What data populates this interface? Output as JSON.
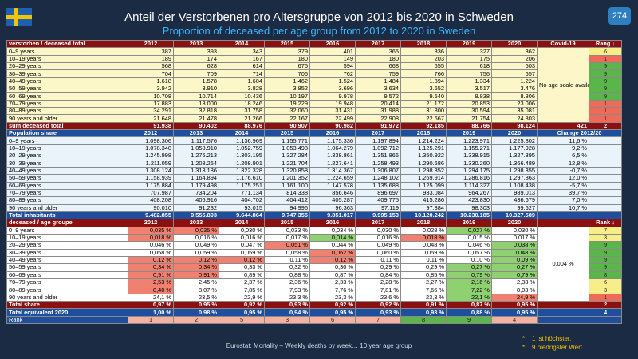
{
  "title_de": "Anteil der Verstorbenen pro Altersgruppe von 2012 bis 2020 in Schweden",
  "title_en": "Proportion of deceased per age group from 2012 to 2020 in Sweden",
  "page_number": "274",
  "colors": {
    "flag_blue": "#1f5fb0",
    "flag_yellow": "#f2c500",
    "header_red": "#8b1010",
    "header_blue": "#1f4f9c",
    "rank_red": "#f06a5a",
    "rank_green": "#5ab54a"
  },
  "years": [
    "2012",
    "2013",
    "2014",
    "2015",
    "2016",
    "2017",
    "2018",
    "2019",
    "2020"
  ],
  "deceased": {
    "header_label": "verstorben / deceased total",
    "covid_label": "Covid-19",
    "rank_label": "Rang ↓",
    "no_scale_note": "No age scale available",
    "rows": [
      {
        "label": "0–9 years",
        "values": [
          "387",
          "393",
          "343",
          "379",
          "401",
          "365",
          "336",
          "327",
          "362"
        ],
        "rank": "6"
      },
      {
        "label": "10–19 years",
        "values": [
          "189",
          "174",
          "167",
          "180",
          "149",
          "180",
          "203",
          "175",
          "206"
        ],
        "rank": "1"
      },
      {
        "label": "20–29 years",
        "values": [
          "568",
          "628",
          "614",
          "675",
          "594",
          "668",
          "655",
          "618",
          "503"
        ],
        "rank": "9"
      },
      {
        "label": "30–39 years",
        "values": [
          "704",
          "709",
          "714",
          "706",
          "762",
          "759",
          "766",
          "756",
          "657"
        ],
        "rank": "9"
      },
      {
        "label": "40–49 years",
        "values": [
          "1.618",
          "1.578",
          "1.604",
          "1.462",
          "1.524",
          "1.484",
          "1.394",
          "1.334",
          "1.224"
        ],
        "rank": "9"
      },
      {
        "label": "50–59 years",
        "values": [
          "3.942",
          "3.910",
          "3.828",
          "3.852",
          "3.696",
          "3.634",
          "3.652",
          "3.517",
          "3.476"
        ],
        "rank": "9"
      },
      {
        "label": "60–69 years",
        "values": [
          "10.708",
          "10.714",
          "10.436",
          "10.197",
          "9.978",
          "9.572",
          "9.540",
          "8.838",
          "8.806"
        ],
        "rank": "9"
      },
      {
        "label": "70–79 years",
        "values": [
          "17.883",
          "18.000",
          "18.246",
          "19.229",
          "19.948",
          "20.414",
          "21.172",
          "20.853",
          "23.006"
        ],
        "rank": "1"
      },
      {
        "label": "80–89 years",
        "values": [
          "34.291",
          "32.818",
          "31.758",
          "32.060",
          "31.431",
          "31.988",
          "31.800",
          "30.594",
          "35.081"
        ],
        "rank": "1"
      },
      {
        "label": "90 years and older",
        "values": [
          "21.648",
          "21.478",
          "21.266",
          "22.167",
          "22.499",
          "22.908",
          "22.667",
          "21.754",
          "24.803"
        ],
        "rank": "1"
      }
    ],
    "total": {
      "label": "sum deceased total",
      "values": [
        "91.938",
        "90.402",
        "88.976",
        "90.907",
        "90.982",
        "91.972",
        "92.185",
        "88.766",
        "98.124"
      ],
      "covid": "421",
      "rank": "2"
    }
  },
  "population": {
    "header_label": "Population share",
    "change_label": "Change 2012/20",
    "rows": [
      {
        "label": "0–9 years",
        "values": [
          "1.098.306",
          "1.117.576",
          "1.136.969",
          "1.155.771",
          "1.175.336",
          "1.197.894",
          "1.214.224",
          "1.223.971",
          "1.225.802"
        ],
        "change": "11,6 %"
      },
      {
        "label": "10–19 years",
        "values": [
          "1.078.340",
          "1.058.910",
          "1.052.759",
          "1.053.498",
          "1.064.279",
          "1.092.712",
          "1.125.291",
          "1.155.271",
          "1.177.928"
        ],
        "change": "9,2 %"
      },
      {
        "label": "20–29 years",
        "values": [
          "1.245.998",
          "1.276.213",
          "1.303.195",
          "1.327.284",
          "1.338.861",
          "1.351.866",
          "1.350.922",
          "1.338.915",
          "1.327.395"
        ],
        "change": "6,5 %"
      },
      {
        "label": "30–39 years",
        "values": [
          "1.211.059",
          "1.208.264",
          "1.208.901",
          "1.221.704",
          "1.227.641",
          "1.258.493",
          "1.290.686",
          "1.330.260",
          "1.366.489"
        ],
        "change": "12,8 %"
      },
      {
        "label": "40–49 years",
        "values": [
          "1.308.124",
          "1.318.186",
          "1.322.328",
          "1.320.858",
          "1.314.367",
          "1.306.807",
          "1.298.352",
          "1.294.175",
          "1.298.355"
        ],
        "change": "-0,7 %"
      },
      {
        "label": "50–59 years",
        "values": [
          "1.158.939",
          "1.164.894",
          "1.176.610",
          "1.201.352",
          "1.224.659",
          "1.248.102",
          "1.269.914",
          "1.286.816",
          "1.297.863"
        ],
        "change": "12,0 %"
      },
      {
        "label": "60–69 years",
        "values": [
          "1.175.884",
          "1.179.498",
          "1.175.251",
          "1.161.100",
          "1.147.578",
          "1.135.688",
          "1.125.099",
          "1.114.327",
          "1.108.438"
        ],
        "change": "-5,7 %"
      },
      {
        "label": "70–79 years",
        "values": [
          "707.987",
          "734.204",
          "771.134",
          "814.338",
          "856.646",
          "896.697",
          "933.084",
          "964.267",
          "989.013"
        ],
        "change": "39,7 %"
      },
      {
        "label": "80–89 years",
        "values": [
          "408.208",
          "406.916",
          "404.702",
          "404.412",
          "405.287",
          "409.775",
          "415.286",
          "423.830",
          "436.679"
        ],
        "change": "7,0 %"
      },
      {
        "label": "90 years and older",
        "values": [
          "90.010",
          "91.232",
          "93.015",
          "94.996",
          "96.363",
          "97.119",
          "97.384",
          "98.303",
          "99.627"
        ],
        "change": "10,7 %"
      }
    ],
    "total": {
      "label": "Total inhabitants",
      "values": [
        "9.482.855",
        "9.555.893",
        "9.644.864",
        "9.747.355",
        "9.851.017",
        "9.995.153",
        "10.120.242",
        "10.230.185",
        "10.327.589"
      ]
    }
  },
  "share": {
    "header_label": "deceased / age groupe",
    "rank_label": "Rank ↓",
    "covid_share": "0,004 %",
    "rows": [
      {
        "label": "0–9 years",
        "values": [
          "0,035 %",
          "0,035 %",
          "0,030 %",
          "0,033 %",
          "0,034 %",
          "0,030 %",
          "0,028 %",
          "0,027 %",
          "0,030 %"
        ],
        "rank": "7"
      },
      {
        "label": "10–19 years",
        "values": [
          "0,018 %",
          "0,016 %",
          "0,016 %",
          "0,017 %",
          "0,014 %",
          "0,016 %",
          "0,018 %",
          "0,015 %",
          "0,017 %"
        ],
        "rank": "3"
      },
      {
        "label": "20–29 years",
        "values": [
          "0,046 %",
          "0,049 %",
          "0,047 %",
          "0,051 %",
          "0,044 %",
          "0,049 %",
          "0,048 %",
          "0,046 %",
          "0,038 %"
        ],
        "rank": "9"
      },
      {
        "label": "30–39 years",
        "values": [
          "0,058 %",
          "0,059 %",
          "0,059 %",
          "0,058 %",
          "0,062 %",
          "0,060 %",
          "0,059 %",
          "0,057 %",
          "0,048 %"
        ],
        "rank": "9"
      },
      {
        "label": "40–49 years",
        "values": [
          "0,12 %",
          "0,12 %",
          "0,12 %",
          "0,11 %",
          "0,12 %",
          "0,11 %",
          "0,11 %",
          "0,10 %",
          "0,09 %"
        ],
        "rank": "9"
      },
      {
        "label": "50–59 years",
        "values": [
          "0,34 %",
          "0,34 %",
          "0,33 %",
          "0,32 %",
          "0,30 %",
          "0,29 %",
          "0,29 %",
          "0,27 %",
          "0,27 %"
        ],
        "rank": "9"
      },
      {
        "label": "60–69 years",
        "values": [
          "0,91 %",
          "0,91 %",
          "0,89 %",
          "0,88 %",
          "0,87 %",
          "0,84 %",
          "0,85 %",
          "0,79 %",
          "0,79 %"
        ],
        "rank": "8"
      },
      {
        "label": "70–79 years",
        "values": [
          "2,53 %",
          "2,45 %",
          "2,37 %",
          "2,36 %",
          "2,33 %",
          "2,28 %",
          "2,27 %",
          "2,16 %",
          "2,33 %"
        ],
        "rank": "6"
      },
      {
        "label": "80–89 years",
        "values": [
          "8,40 %",
          "8,07 %",
          "7,85 %",
          "7,93 %",
          "7,76 %",
          "7,81 %",
          "7,66 %",
          "7,22 %",
          "8,03 %"
        ],
        "rank": "3"
      },
      {
        "label": "90 years and older",
        "values": [
          "24,1 %",
          "23,5 %",
          "22,9 %",
          "23,3 %",
          "23,3 %",
          "23,6 %",
          "23,3 %",
          "22,1 %",
          "24,9 %"
        ],
        "rank": "1"
      }
    ],
    "total": {
      "label": "Total share",
      "values": [
        "0,97 %",
        "0,95 %",
        "0,92 %",
        "0,93 %",
        "0,92 %",
        "0,92 %",
        "0,91 %",
        "0,87 %",
        "0,95 %"
      ],
      "rank": "2"
    },
    "total_equiv": {
      "label": "Total equivalent 2020",
      "values": [
        "1,00 %",
        "0,98 %",
        "0,95 %",
        "0,94 %",
        "0,95 %",
        "0,93 %",
        "0,93 %",
        "0,88 %",
        "0,95 %"
      ],
      "rank": "4"
    },
    "rank_row": {
      "label": "Rank",
      "values": [
        "1",
        "2",
        "5",
        "3",
        "6",
        "7",
        "8",
        "9",
        "4"
      ]
    }
  },
  "footer": {
    "source_prefix": "Eurostat:",
    "source_link": "Mortality – Weekly deaths by week… 10 year age group"
  },
  "notes": {
    "line1": "1 ist höchster,",
    "line2": "9 niedrigster Wert",
    "star": "*"
  }
}
